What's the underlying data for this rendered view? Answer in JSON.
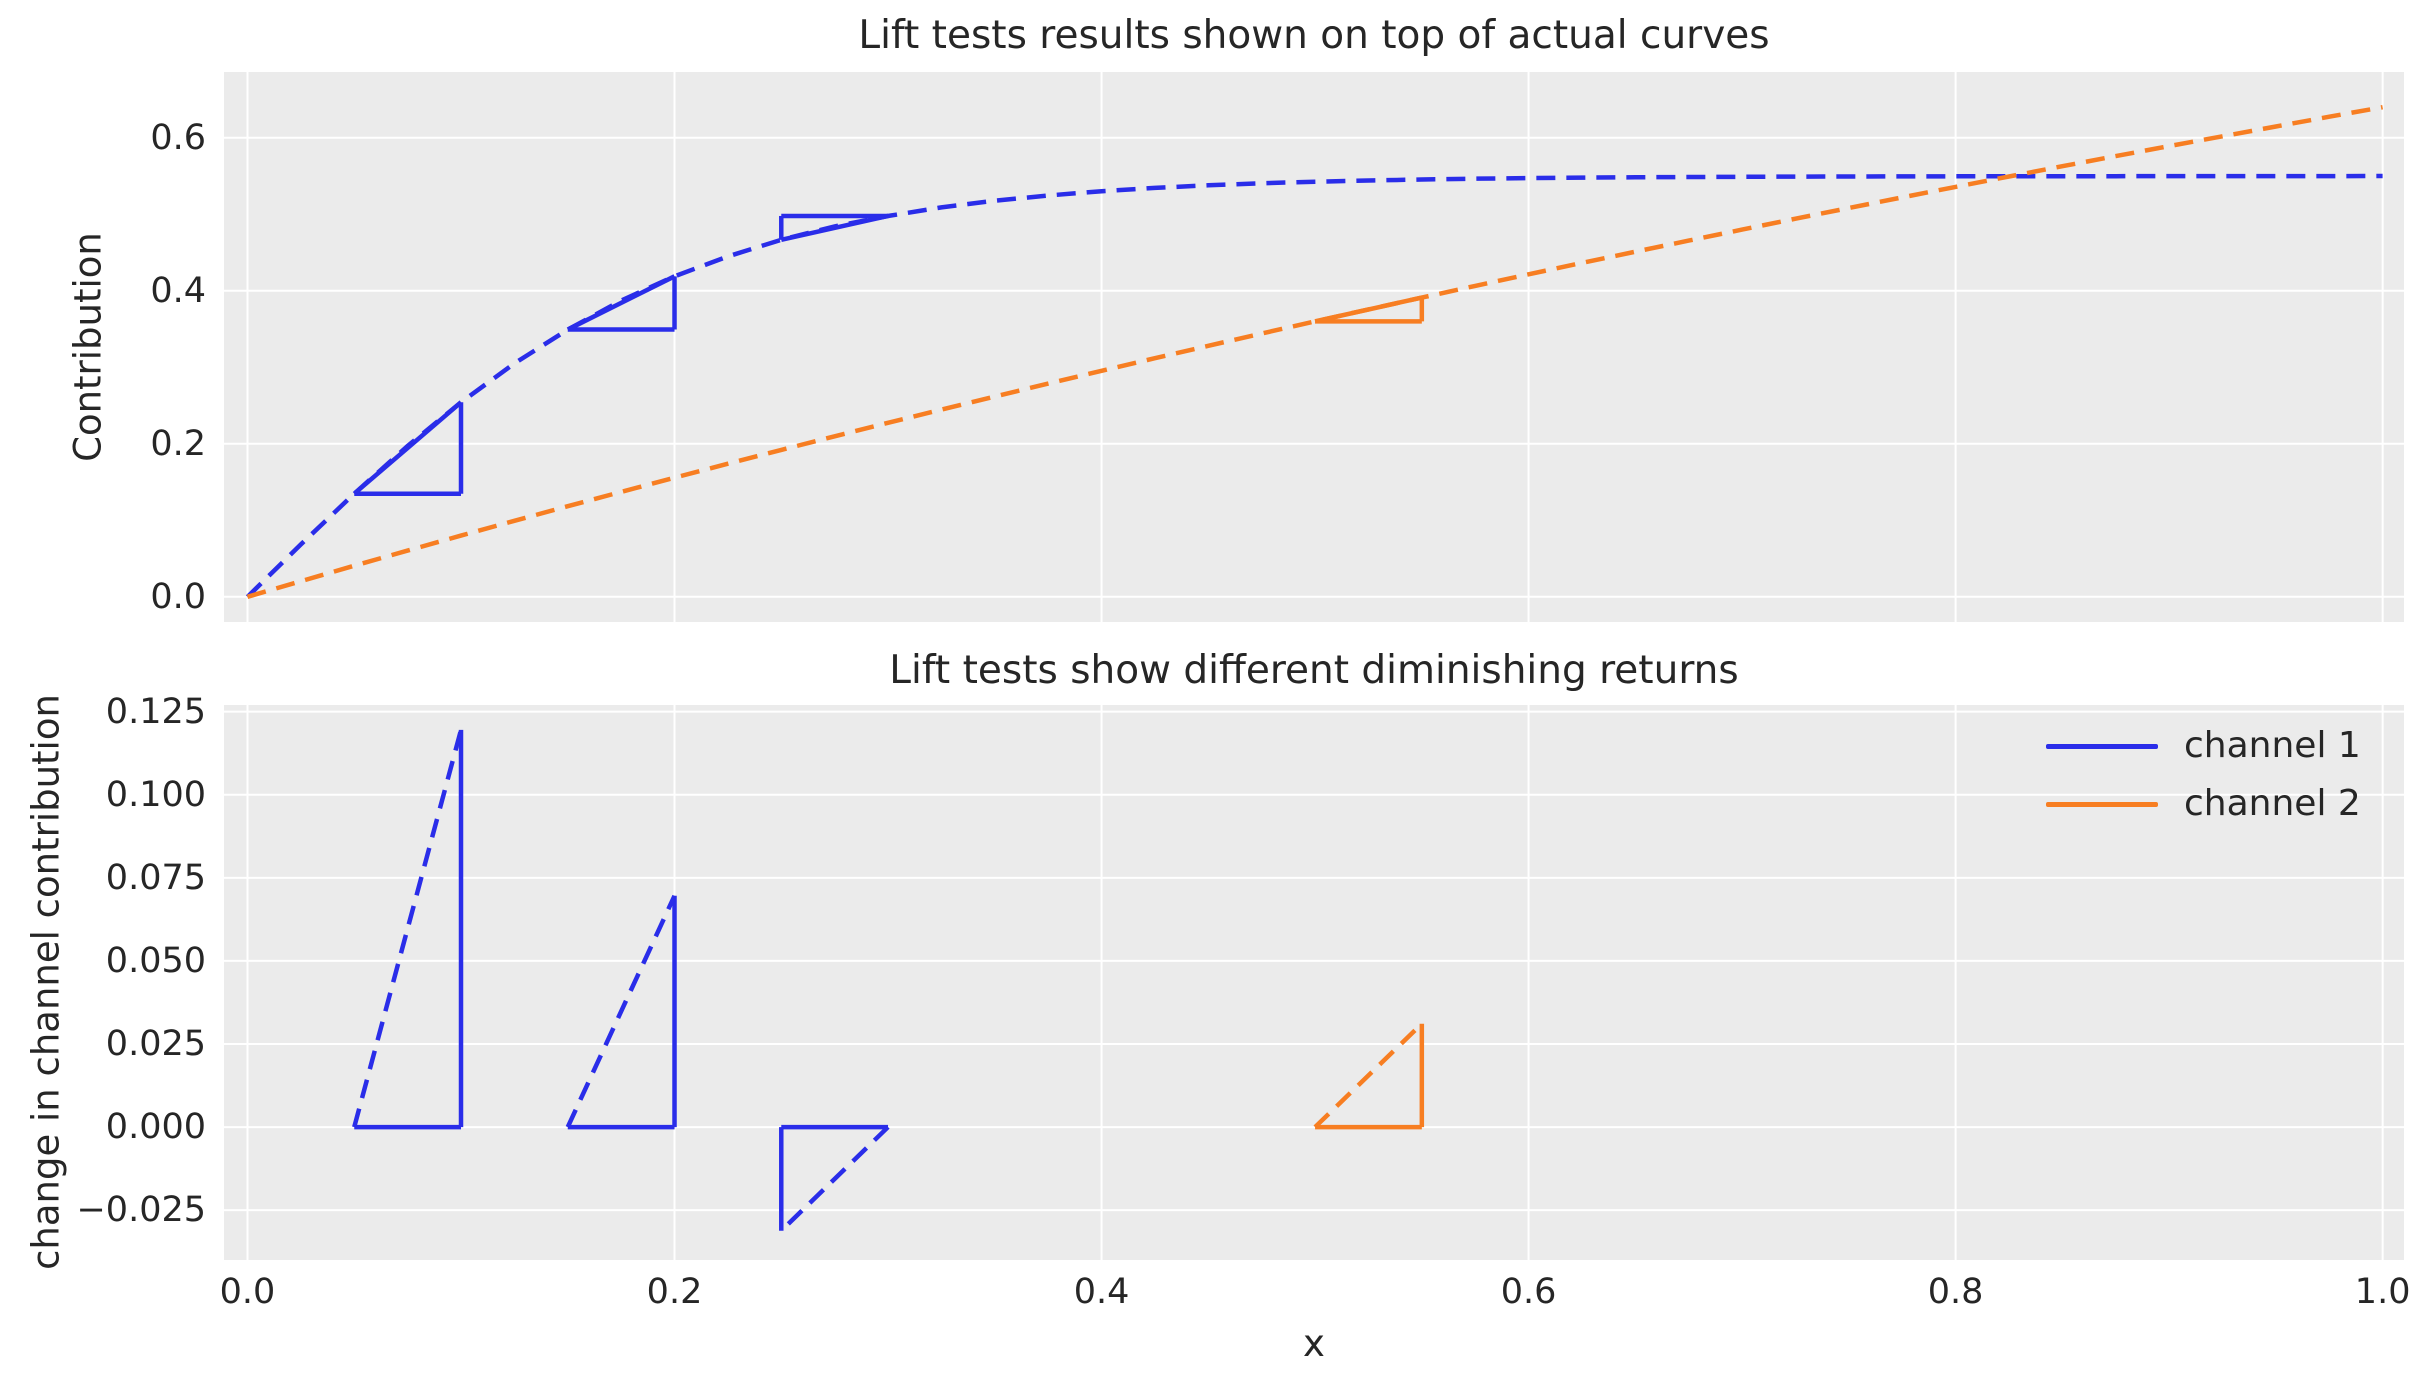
{
  "colors": {
    "channel1": "#2a2de9",
    "channel2": "#f77e22",
    "axes_background": "#ebebeb",
    "gridline": "#ffffff",
    "text": "#262626",
    "figure_background": "#ffffff"
  },
  "chart_data": [
    {
      "type": "line",
      "title": "Lift tests results shown on top of actual curves",
      "ylabel": "Contribution",
      "xlabel": "",
      "xlim": [
        -0.011,
        1.01
      ],
      "ylim": [
        -0.033,
        0.686
      ],
      "grid": true,
      "legend_position": "none",
      "x_ticks": {
        "values": [
          0.0,
          0.2,
          0.4,
          0.6,
          0.8,
          1.0
        ],
        "labels": []
      },
      "y_ticks": {
        "values": [
          0.0,
          0.2,
          0.4,
          0.6
        ],
        "labels": [
          "0.0",
          "0.2",
          "0.4",
          "0.6"
        ]
      },
      "series": [
        {
          "name": "channel 1",
          "color_key": "channel1",
          "linestyle": "dashed",
          "x": [
            0,
            0.025,
            0.05,
            0.075,
            0.1,
            0.125,
            0.15,
            0.175,
            0.2,
            0.225,
            0.25,
            0.275,
            0.3,
            0.325,
            0.35,
            0.375,
            0.4,
            0.425,
            0.45,
            0.475,
            0.5,
            0.525,
            0.55,
            0.575,
            0.6,
            0.625,
            0.65,
            0.675,
            0.7,
            0.725,
            0.75,
            0.775,
            0.8,
            0.825,
            0.85,
            0.875,
            0.9,
            0.925,
            0.95,
            0.975,
            1.0
          ],
          "y": [
            0,
            0.0684,
            0.1347,
            0.1971,
            0.2542,
            0.3051,
            0.3493,
            0.3871,
            0.4189,
            0.445,
            0.4666,
            0.4841,
            0.4978,
            0.509,
            0.5178,
            0.5245,
            0.5302,
            0.5345,
            0.5379,
            0.5406,
            0.5426,
            0.5442,
            0.5455,
            0.5465,
            0.5473,
            0.5479,
            0.5483,
            0.5487,
            0.549,
            0.5492,
            0.5494,
            0.5495,
            0.5496,
            0.5497,
            0.5498,
            0.5498,
            0.5499,
            0.5499,
            0.5499,
            0.5499,
            0.55
          ]
        },
        {
          "name": "channel 2",
          "color_key": "channel2",
          "linestyle": "dashed",
          "x": [
            0,
            0.025,
            0.05,
            0.075,
            0.1,
            0.125,
            0.15,
            0.175,
            0.2,
            0.225,
            0.25,
            0.275,
            0.3,
            0.325,
            0.35,
            0.375,
            0.4,
            0.425,
            0.45,
            0.475,
            0.5,
            0.525,
            0.55,
            0.575,
            0.6,
            0.625,
            0.65,
            0.675,
            0.7,
            0.725,
            0.75,
            0.775,
            0.8,
            0.825,
            0.85,
            0.875,
            0.9,
            0.925,
            0.95,
            0.975,
            1.0
          ],
          "y": [
            0,
            0.0204,
            0.0406,
            0.0604,
            0.08,
            0.0993,
            0.1184,
            0.1371,
            0.1557,
            0.174,
            0.192,
            0.2098,
            0.2274,
            0.2447,
            0.2618,
            0.2787,
            0.2954,
            0.3118,
            0.3281,
            0.3442,
            0.36,
            0.3757,
            0.3911,
            0.4064,
            0.4215,
            0.4364,
            0.4511,
            0.4656,
            0.48,
            0.4942,
            0.5082,
            0.5221,
            0.5358,
            0.5494,
            0.5628,
            0.576,
            0.5891,
            0.602,
            0.6148,
            0.6275,
            0.64
          ]
        }
      ],
      "lift_tests": [
        {
          "channel": "channel 1",
          "color_key": "channel1",
          "x_start": 0.05,
          "x_end": 0.1,
          "y_start": 0.1347,
          "delta_y": 0.1195
        },
        {
          "channel": "channel 1",
          "color_key": "channel1",
          "x_start": 0.15,
          "x_end": 0.2,
          "y_start": 0.3493,
          "delta_y": 0.0696
        },
        {
          "channel": "channel 1",
          "color_key": "channel1",
          "x_start": 0.3,
          "x_end": 0.25,
          "y_start": 0.4978,
          "delta_y": -0.0312
        },
        {
          "channel": "channel 2",
          "color_key": "channel2",
          "x_start": 0.5,
          "x_end": 0.55,
          "y_start": 0.36,
          "delta_y": 0.0311
        }
      ]
    },
    {
      "type": "line",
      "title": "Lift tests show different diminishing returns",
      "ylabel": "change in channel contribution",
      "xlabel": "x",
      "xlim": [
        -0.011,
        1.01
      ],
      "ylim": [
        -0.04,
        0.127
      ],
      "grid": true,
      "legend_position": "upper right",
      "x_ticks": {
        "values": [
          0.0,
          0.2,
          0.4,
          0.6,
          0.8,
          1.0
        ],
        "labels": [
          "0.0",
          "0.2",
          "0.4",
          "0.6",
          "0.8",
          "1.0"
        ]
      },
      "y_ticks": {
        "values": [
          0.125,
          0.1,
          0.075,
          0.05,
          0.025,
          0.0,
          -0.025
        ],
        "labels": [
          "0.125",
          "0.100",
          "0.075",
          "0.050",
          "0.025",
          "0.000",
          "−0.025"
        ]
      },
      "series": [],
      "legend": {
        "entries": [
          {
            "label": "channel 1",
            "color_key": "channel1"
          },
          {
            "label": "channel 2",
            "color_key": "channel2"
          }
        ]
      },
      "lift_tests": [
        {
          "channel": "channel 1",
          "color_key": "channel1",
          "x_start": 0.05,
          "x_end": 0.1,
          "y_start": 0.0,
          "delta_y": 0.1195
        },
        {
          "channel": "channel 1",
          "color_key": "channel1",
          "x_start": 0.15,
          "x_end": 0.2,
          "y_start": 0.0,
          "delta_y": 0.0696
        },
        {
          "channel": "channel 1",
          "color_key": "channel1",
          "x_start": 0.3,
          "x_end": 0.25,
          "y_start": 0.0,
          "delta_y": -0.0312
        },
        {
          "channel": "channel 2",
          "color_key": "channel2",
          "x_start": 0.5,
          "x_end": 0.55,
          "y_start": 0.0,
          "delta_y": 0.0311
        }
      ]
    }
  ]
}
